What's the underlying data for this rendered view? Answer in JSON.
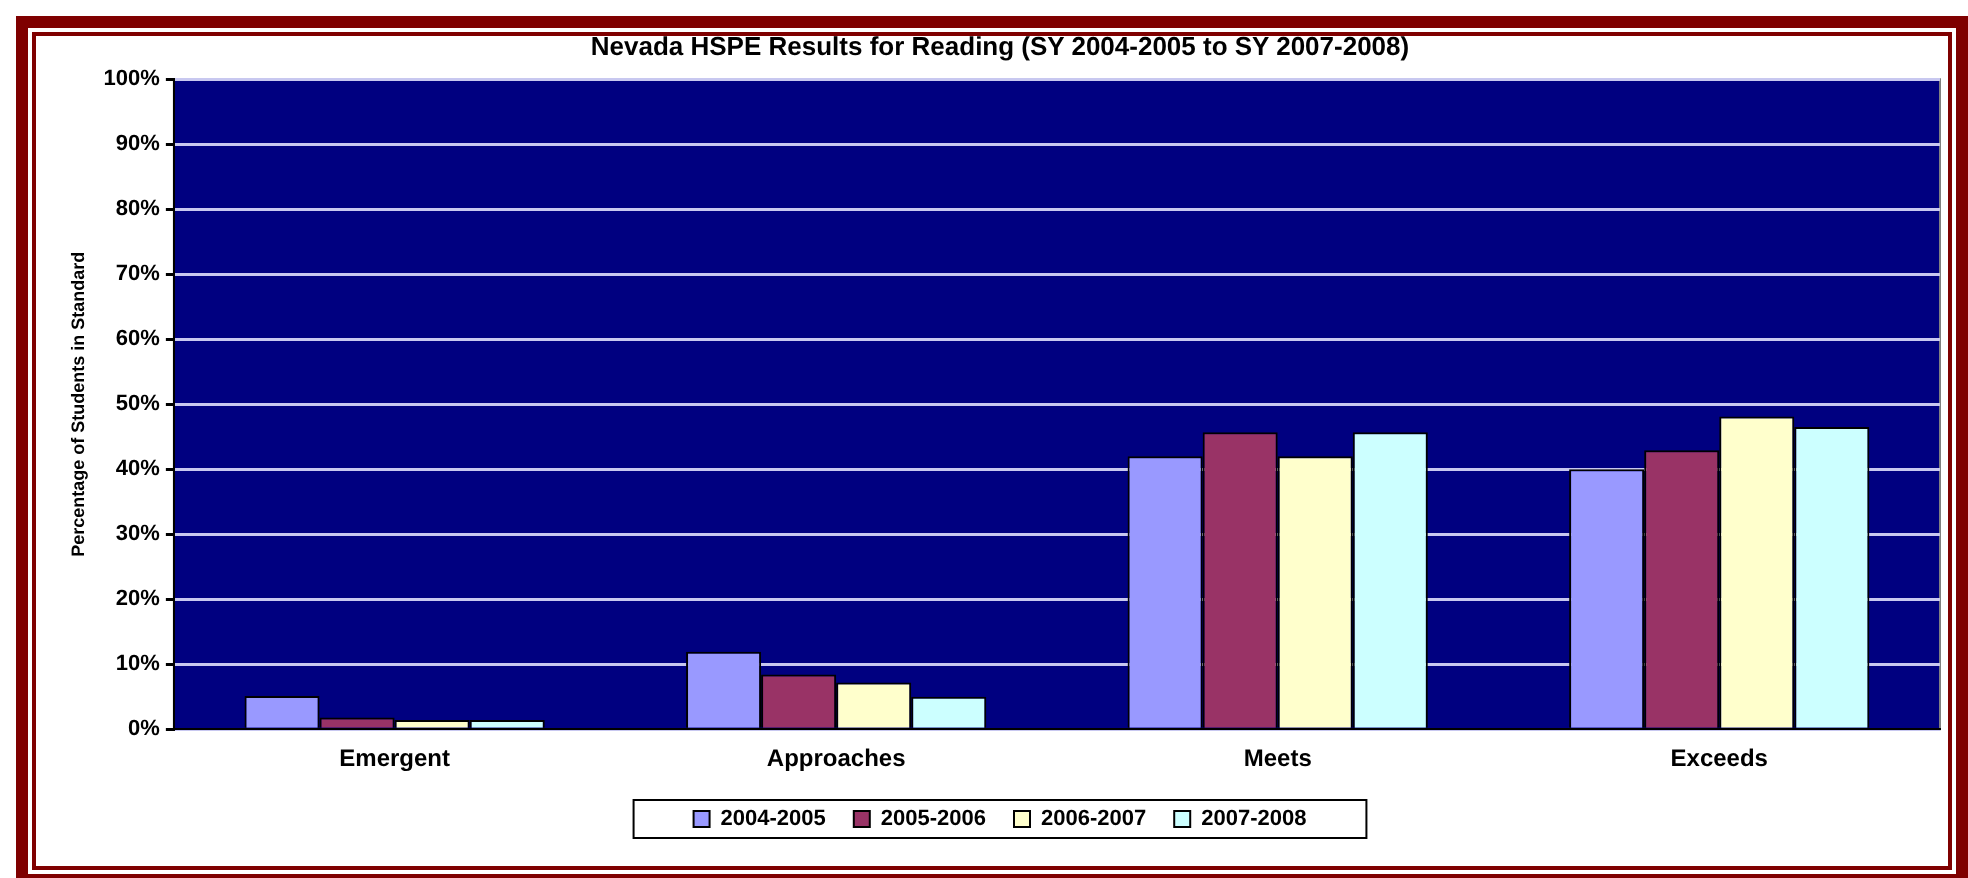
{
  "chart_data": {
    "type": "bar",
    "title": "Nevada HSPE Results for Reading (SY 2004-2005 to SY 2007-2008)",
    "ylabel": "Percentage of Students in Standard",
    "categories": [
      "Emergent",
      "Approaches",
      "Meets",
      "Exceeds"
    ],
    "series": [
      {
        "name": "2004-2005",
        "color": "#9999ff",
        "values": [
          5.1,
          11.9,
          42.0,
          40.0
        ]
      },
      {
        "name": "2005-2006",
        "color": "#993366",
        "values": [
          1.8,
          8.4,
          45.7,
          42.9
        ]
      },
      {
        "name": "2006-2007",
        "color": "#ffffcc",
        "values": [
          1.4,
          7.2,
          42.0,
          48.1
        ]
      },
      {
        "name": "2007-2008",
        "color": "#ccffff",
        "values": [
          1.4,
          5.0,
          45.7,
          46.5
        ]
      }
    ],
    "ylim": [
      0,
      100
    ],
    "yticks": [
      {
        "value": 0,
        "label": "0%"
      },
      {
        "value": 10,
        "label": "10%"
      },
      {
        "value": 20,
        "label": "20%"
      },
      {
        "value": 30,
        "label": "30%"
      },
      {
        "value": 40,
        "label": "40%"
      },
      {
        "value": 50,
        "label": "50%"
      },
      {
        "value": 60,
        "label": "60%"
      },
      {
        "value": 70,
        "label": "70%"
      },
      {
        "value": 80,
        "label": "80%"
      },
      {
        "value": 90,
        "label": "90%"
      },
      {
        "value": 100,
        "label": "100%"
      }
    ],
    "grid": "y",
    "legend": "bottom"
  }
}
